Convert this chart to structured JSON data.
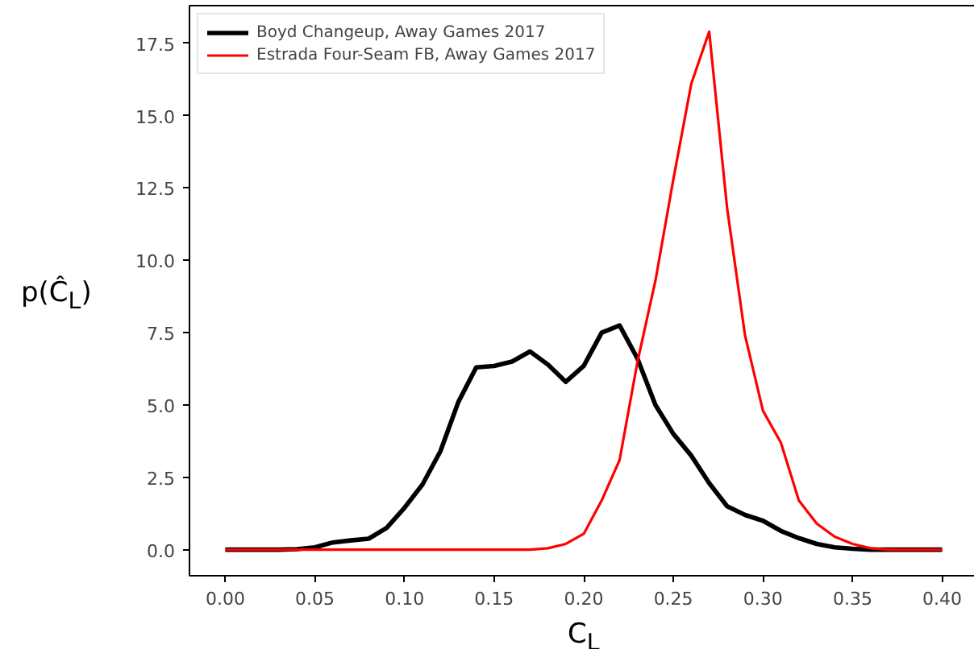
{
  "chart_data": {
    "type": "line",
    "xlabel": "C$_{L}$",
    "ylabel": "p(Ĉ$_{L}$)",
    "x": [
      0,
      0.01,
      0.02,
      0.03,
      0.04,
      0.05,
      0.06,
      0.07,
      0.08,
      0.09,
      0.1,
      0.11,
      0.12,
      0.13,
      0.14,
      0.15,
      0.16,
      0.17,
      0.18,
      0.19,
      0.2,
      0.21,
      0.22,
      0.23,
      0.24,
      0.25,
      0.26,
      0.27,
      0.28,
      0.29,
      0.3,
      0.31,
      0.32,
      0.33,
      0.34,
      0.35,
      0.36,
      0.37,
      0.38,
      0.39,
      0.4
    ],
    "series": [
      {
        "name": "Boyd Changeup, Away Games 2017",
        "color": "#000000",
        "values": [
          0,
          0,
          0,
          0,
          0.02,
          0.08,
          0.25,
          0.32,
          0.38,
          0.75,
          1.45,
          2.25,
          3.4,
          5.1,
          6.3,
          6.35,
          6.5,
          6.85,
          6.4,
          5.8,
          6.35,
          7.5,
          7.75,
          6.6,
          5.0,
          4.0,
          3.25,
          2.3,
          1.5,
          1.2,
          1.0,
          0.65,
          0.4,
          0.2,
          0.08,
          0.03,
          0,
          0,
          0,
          0,
          0
        ]
      },
      {
        "name": "Estrada Four-Seam FB, Away Games 2017",
        "color": "#ff0000",
        "values": [
          0,
          0,
          0,
          0,
          0,
          0,
          0,
          0,
          0,
          0,
          0,
          0,
          0,
          0,
          0,
          0,
          0,
          0,
          0.05,
          0.2,
          0.55,
          1.7,
          3.1,
          6.5,
          9.3,
          12.8,
          16.1,
          17.9,
          11.8,
          7.4,
          4.8,
          3.7,
          1.7,
          0.9,
          0.45,
          0.2,
          0.05,
          0,
          0,
          0,
          0
        ]
      }
    ],
    "xlim": [
      -0.02,
      0.42
    ],
    "ylim": [
      -0.9,
      18.8
    ],
    "xticks": [
      {
        "value": 0,
        "label": "0.00"
      },
      {
        "value": 0.05,
        "label": "0.05"
      },
      {
        "value": 0.1,
        "label": "0.10"
      },
      {
        "value": 0.15,
        "label": "0.15"
      },
      {
        "value": 0.2,
        "label": "0.20"
      },
      {
        "value": 0.25,
        "label": "0.25"
      },
      {
        "value": 0.3,
        "label": "0.30"
      },
      {
        "value": 0.35,
        "label": "0.35"
      },
      {
        "value": 0.4,
        "label": "0.40"
      }
    ],
    "yticks": [
      {
        "value": 0,
        "label": "0.0"
      },
      {
        "value": 2.5,
        "label": "2.5"
      },
      {
        "value": 5,
        "label": "5.0"
      },
      {
        "value": 7.5,
        "label": "7.5"
      },
      {
        "value": 10,
        "label": "10.0"
      },
      {
        "value": 12.5,
        "label": "12.5"
      },
      {
        "value": 15,
        "label": "15.0"
      },
      {
        "value": 17.5,
        "label": "17.5"
      }
    ],
    "legend": "top left",
    "grid": false,
    "marker": "none",
    "line_style": "solid"
  }
}
